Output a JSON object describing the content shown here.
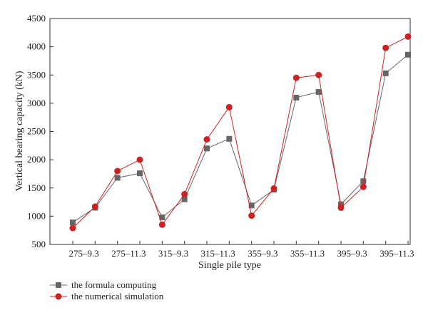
{
  "chart_data": {
    "type": "line",
    "title": "",
    "xlabel": "Single pile type",
    "ylabel": "Vertical bearing capacity (kN)",
    "ylim": [
      500,
      4500
    ],
    "yticks": [
      500,
      1000,
      1500,
      2000,
      2500,
      3000,
      3500,
      4000,
      4500
    ],
    "x_tick_labels": [
      "275–9.3",
      "275–11.3",
      "315–9.3",
      "315–11.3",
      "355–9.3",
      "355–11.3",
      "395–9.3",
      "395–11.3"
    ],
    "grid": false,
    "legend_position": "bottom-left",
    "series": [
      {
        "name": "the formula computing",
        "color": "#666666",
        "marker": "square",
        "values": [
          890,
          1150,
          1680,
          1760,
          980,
          1300,
          2200,
          2370,
          1190,
          1470,
          3100,
          3200,
          1210,
          1620,
          3530,
          3860
        ]
      },
      {
        "name": "the numerical simulation",
        "color": "#cc2222",
        "marker": "circle",
        "values": [
          790,
          1170,
          1800,
          2000,
          850,
          1390,
          2360,
          2930,
          1010,
          1490,
          3450,
          3500,
          1150,
          1520,
          3980,
          4180
        ]
      }
    ]
  }
}
